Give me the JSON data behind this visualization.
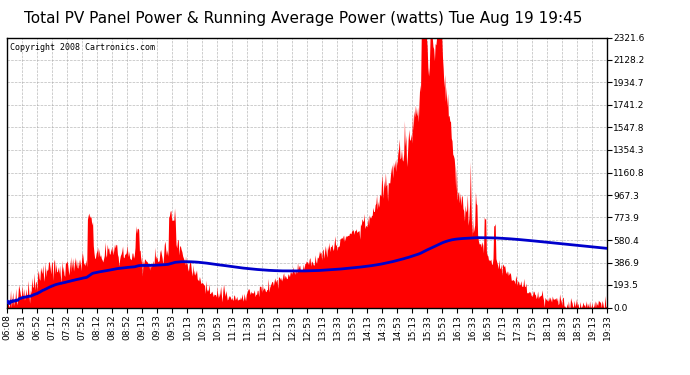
{
  "title": "Total PV Panel Power & Running Average Power (watts) Tue Aug 19 19:45",
  "copyright": "Copyright 2008 Cartronics.com",
  "yticks": [
    0.0,
    193.5,
    386.9,
    580.4,
    773.9,
    967.3,
    1160.8,
    1354.3,
    1547.8,
    1741.2,
    1934.7,
    2128.2,
    2321.6
  ],
  "xtick_labels": [
    "06:08",
    "06:31",
    "06:52",
    "07:12",
    "07:32",
    "07:52",
    "08:12",
    "08:32",
    "08:52",
    "09:13",
    "09:33",
    "09:53",
    "10:13",
    "10:33",
    "10:53",
    "11:13",
    "11:33",
    "11:53",
    "12:13",
    "12:33",
    "12:53",
    "13:13",
    "13:33",
    "13:53",
    "14:13",
    "14:33",
    "14:53",
    "15:13",
    "15:33",
    "15:53",
    "16:13",
    "16:33",
    "16:53",
    "17:13",
    "17:33",
    "17:53",
    "18:13",
    "18:33",
    "18:53",
    "19:13",
    "19:33"
  ],
  "fill_color": "#FF0000",
  "line_color": "#0000CC",
  "background_color": "#FFFFFF",
  "grid_color": "#AAAAAA",
  "title_fontsize": 11,
  "copyright_fontsize": 6,
  "tick_fontsize": 6.5
}
